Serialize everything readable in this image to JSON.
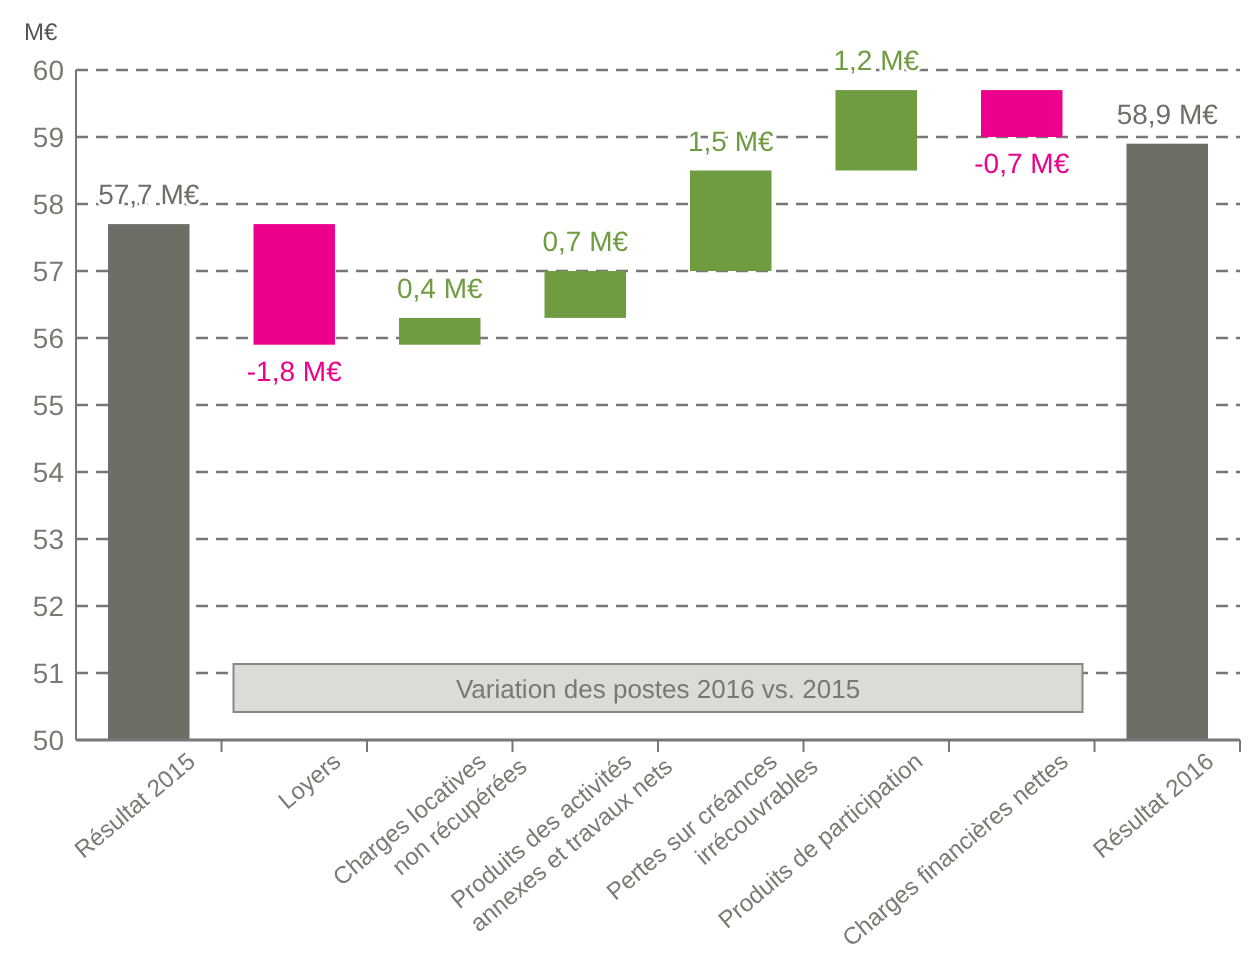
{
  "chart_data": {
    "type": "bar",
    "ylabel": "M€",
    "categories": [
      "Résultat 2015",
      "Loyers",
      "Charges locatives\nnon récupérées",
      "Produits des activités\nannexes et travaux nets",
      "Pertes sur créances\nirrécouvrables",
      "Produits de participation",
      "Charges financières nettes",
      "Résultat 2016"
    ],
    "values": [
      57.7,
      -1.8,
      0.4,
      0.7,
      1.5,
      1.2,
      -0.7,
      58.9
    ],
    "base": [
      0,
      57.7,
      55.9,
      56.3,
      57.0,
      58.5,
      59.7,
      0
    ],
    "colors": [
      "#6e6d66",
      "#ec008c",
      "#6f9c40",
      "#6f9c40",
      "#6f9c40",
      "#6f9c40",
      "#ec008c",
      "#6e6d66"
    ],
    "value_labels": [
      "57,7 M€",
      "-1,8 M€",
      "0,4 M€",
      "0,7 M€",
      "1,5 M€",
      "1,2 M€",
      "-0,7 M€",
      "58,9 M€"
    ],
    "ylim": [
      50,
      60
    ],
    "yticks": [
      50,
      51,
      52,
      53,
      54,
      55,
      56,
      57,
      58,
      59,
      60
    ],
    "grid": "y",
    "annotations": [
      "Variation des postes 2016 vs. 2015"
    ]
  }
}
